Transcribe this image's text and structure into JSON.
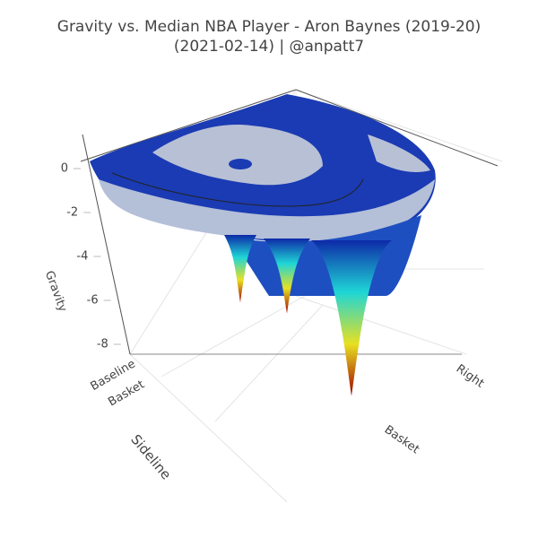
{
  "chart_data": {
    "type": "surface",
    "title": "Gravity vs. Median NBA Player - Aron Baynes (2019-20)",
    "subtitle": "(2021-02-14) | @anpatt7",
    "zaxis_label": "Gravity",
    "xaxis_label": "Sideline",
    "xticks": [
      "Baseline",
      "Basket"
    ],
    "yticks": [
      "Basket",
      "Right"
    ],
    "zlim": [
      -9,
      0.5
    ],
    "zticks": [
      0,
      -2,
      -4,
      -6,
      -8
    ],
    "minima": [
      -6.1,
      -6.6,
      -8.9
    ],
    "colorscale": [
      "#0d2aa8",
      "#1fd6d6",
      "#e8e020",
      "#a00000"
    ]
  }
}
